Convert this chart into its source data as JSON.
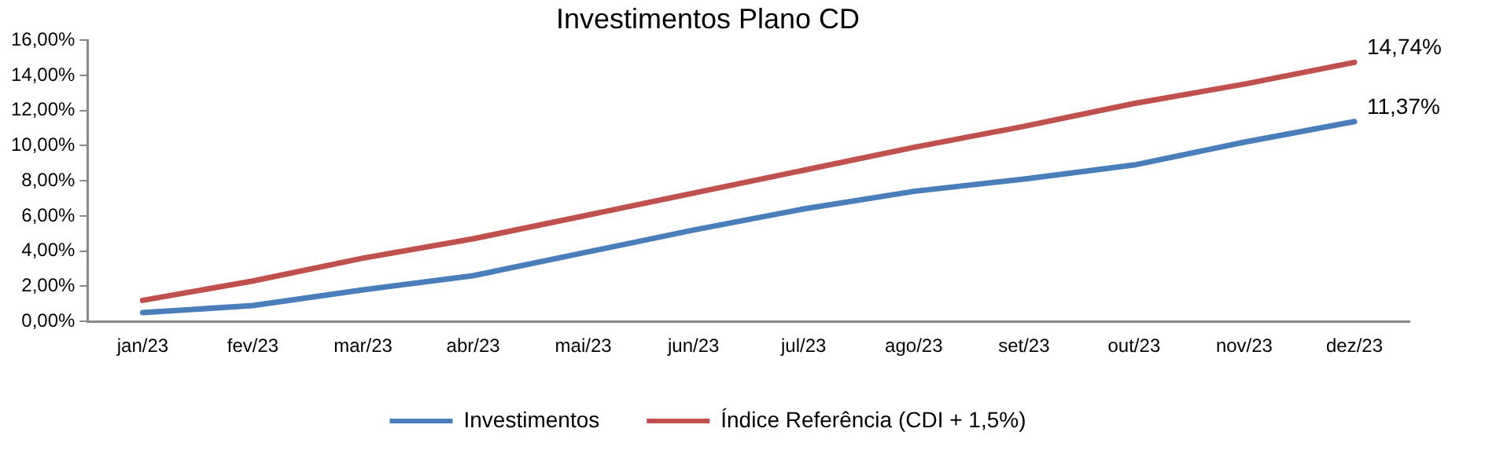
{
  "chart_data": {
    "type": "line",
    "title": "Investimentos Plano CD",
    "categories": [
      "jan/23",
      "fev/23",
      "mar/23",
      "abr/23",
      "mai/23",
      "jun/23",
      "jul/23",
      "ago/23",
      "set/23",
      "out/23",
      "nov/23",
      "dez/23"
    ],
    "series": [
      {
        "name": "Investimentos",
        "color": "#4a7ebb",
        "values": [
          0.5,
          0.9,
          1.8,
          2.6,
          3.9,
          5.2,
          6.4,
          7.4,
          8.1,
          8.9,
          10.2,
          11.37
        ],
        "value_labels": [
          null,
          null,
          null,
          null,
          null,
          null,
          null,
          null,
          null,
          null,
          null,
          "11,37%"
        ]
      },
      {
        "name": "Índice Referência (CDI + 1,5%)",
        "color": "#c0504d",
        "values": [
          1.2,
          2.3,
          3.6,
          4.7,
          6.0,
          7.3,
          8.6,
          9.9,
          11.1,
          12.4,
          13.5,
          14.74
        ],
        "value_labels": [
          null,
          null,
          null,
          null,
          null,
          null,
          null,
          null,
          null,
          null,
          null,
          "14,74%"
        ]
      }
    ],
    "ylim": [
      0,
      16
    ],
    "yticks": [
      {
        "value": 0,
        "label": "0,00%"
      },
      {
        "value": 2,
        "label": "2,00%"
      },
      {
        "value": 4,
        "label": "4,00%"
      },
      {
        "value": 6,
        "label": "6,00%"
      },
      {
        "value": 8,
        "label": "8,00%"
      },
      {
        "value": 10,
        "label": "10,00%"
      },
      {
        "value": 12,
        "label": "12,00%"
      },
      {
        "value": 14,
        "label": "14,00%"
      },
      {
        "value": 16,
        "label": "16,00%"
      }
    ],
    "grid": false,
    "legend": "bottom",
    "marker": "none",
    "line_style": "solid"
  }
}
